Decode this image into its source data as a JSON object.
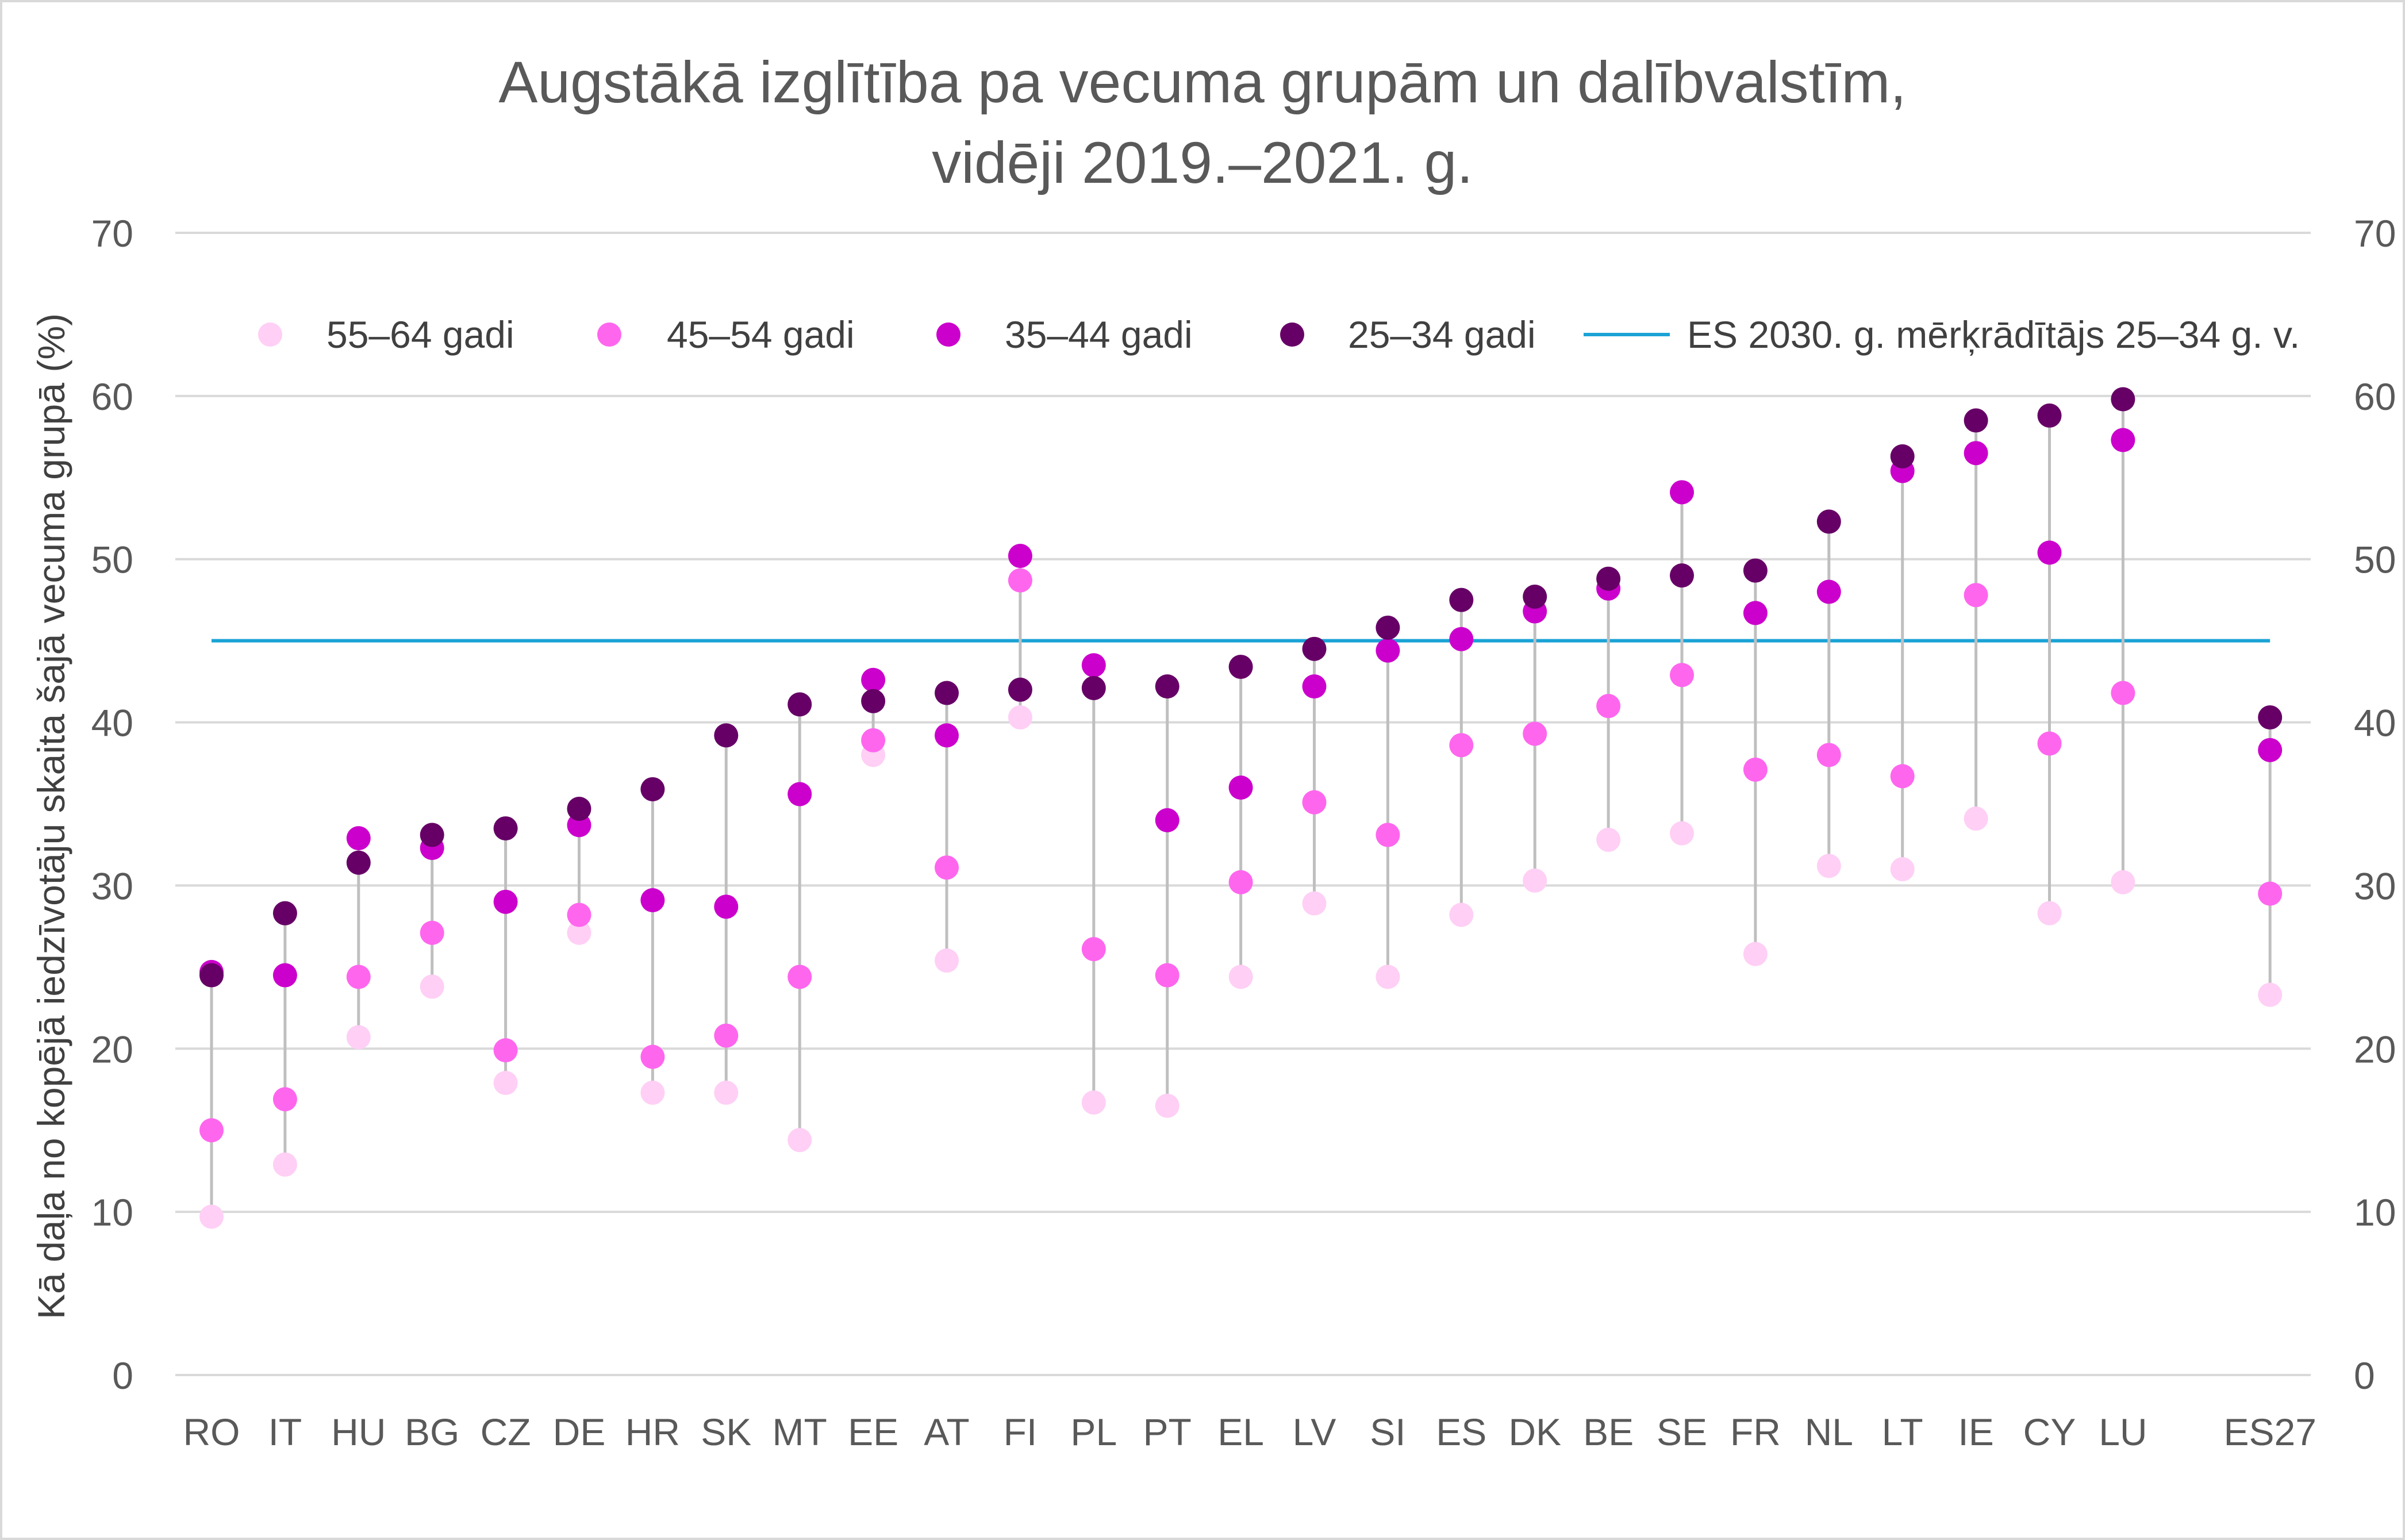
{
  "chart_data": {
    "type": "scatter",
    "title_lines": [
      "Augstākā izglītība pa vecuma grupām un dalībvalstīm,",
      "vidēji 2019.–2021. g."
    ],
    "ylabel": "Kā daļa no kopējā iedzīvotāju skaita šajā vecuma grupā (%)",
    "xlabel": "",
    "ylim": [
      0,
      70
    ],
    "yticks": [
      0,
      10,
      20,
      30,
      40,
      50,
      60,
      70
    ],
    "yticks_right": true,
    "grid": true,
    "legend_position": "top",
    "categories": [
      "RO",
      "IT",
      "HU",
      "BG",
      "CZ",
      "DE",
      "HR",
      "SK",
      "MT",
      "EE",
      "AT",
      "FI",
      "PL",
      "PT",
      "EL",
      "LV",
      "SI",
      "ES",
      "DK",
      "BE",
      "SE",
      "FR",
      "NL",
      "LT",
      "IE",
      "CY",
      "LU",
      "",
      "ES27"
    ],
    "series": [
      {
        "name": "55–64 gadi",
        "color": "#ffcff5",
        "values": [
          9.7,
          12.9,
          20.7,
          23.8,
          17.9,
          27.1,
          17.3,
          17.3,
          14.4,
          38.0,
          25.4,
          40.3,
          16.7,
          16.5,
          24.4,
          28.9,
          24.4,
          28.2,
          30.3,
          32.8,
          33.2,
          25.8,
          31.2,
          31.0,
          34.1,
          28.3,
          30.2,
          null,
          23.3
        ]
      },
      {
        "name": "45–54 gadi",
        "color": "#ff66ee",
        "values": [
          15.0,
          16.9,
          24.4,
          27.1,
          19.9,
          28.2,
          19.5,
          20.8,
          24.4,
          38.9,
          31.1,
          48.7,
          26.1,
          24.5,
          30.2,
          35.1,
          33.1,
          38.6,
          39.3,
          41.0,
          42.9,
          37.1,
          38.0,
          36.7,
          47.8,
          38.7,
          41.8,
          null,
          29.5
        ]
      },
      {
        "name": "35–44 gadi",
        "color": "#cc00cc",
        "values": [
          24.7,
          24.5,
          32.9,
          32.3,
          29.0,
          33.7,
          29.1,
          28.7,
          35.6,
          42.6,
          39.2,
          50.2,
          43.5,
          34.0,
          36.0,
          42.2,
          44.4,
          45.1,
          46.8,
          48.2,
          54.1,
          46.7,
          48.0,
          55.4,
          56.5,
          50.4,
          57.3,
          null,
          38.3
        ]
      },
      {
        "name": "25–34 gadi",
        "color": "#660066",
        "values": [
          24.5,
          28.3,
          31.4,
          33.1,
          33.5,
          34.7,
          35.9,
          39.2,
          41.1,
          41.3,
          41.8,
          42.0,
          42.1,
          42.2,
          43.4,
          44.5,
          45.8,
          47.5,
          47.7,
          48.8,
          49.0,
          49.3,
          52.3,
          56.3,
          58.5,
          58.8,
          59.8,
          null,
          40.3
        ]
      }
    ],
    "reference_line": {
      "name": "ES 2030. g. mērķrādītājs 25–34 g. v.",
      "value": 45,
      "color": "#1ba3d6"
    },
    "range_line_color": "#bfbfbf",
    "grid_color": "#d9d9d9"
  }
}
